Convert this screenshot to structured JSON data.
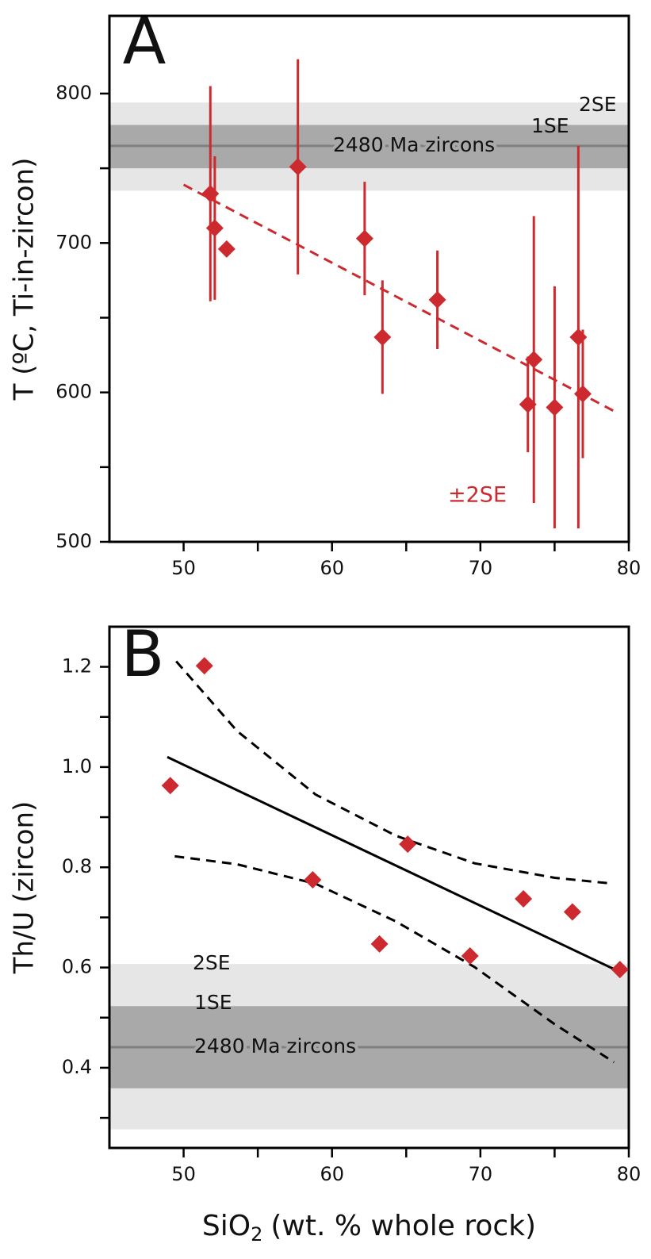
{
  "chart_data": [
    {
      "type": "scatter",
      "title": "A",
      "y_label": "T (ºC, Ti-in-zircon)",
      "xlim": [
        45,
        80
      ],
      "ylim": [
        500,
        852
      ],
      "xticks": [
        50,
        60,
        70,
        80
      ],
      "xminorticks": [
        55,
        65,
        75
      ],
      "yticks": [
        500,
        600,
        700,
        800
      ],
      "yminorticks": [
        550,
        650,
        750
      ],
      "reference": {
        "label": "2480 Ma zircons",
        "value": 765,
        "band_1se": [
          750,
          779
        ],
        "band_2se": [
          735,
          794
        ],
        "label_1se": "1SE",
        "label_2se": "2SE",
        "color": "#808080",
        "color_1se": "#a9a9a9",
        "color_2se": "#e6e6e6"
      },
      "points": {
        "color": "#cc2a2f",
        "x": [
          51.8,
          52.1,
          52.9,
          57.7,
          62.2,
          63.4,
          67.1,
          73.2,
          73.6,
          75.0,
          76.6,
          76.9
        ],
        "values": [
          733,
          710,
          696,
          751,
          703,
          637,
          662,
          592,
          622,
          590,
          637,
          599
        ],
        "errors": [
          72,
          48,
          null,
          72,
          38,
          38,
          33,
          32,
          96,
          81,
          128,
          43
        ]
      },
      "error_label": "±2SE",
      "fits": [
        {
          "style": "dashed",
          "color": "#cc2a2f",
          "x": [
            50,
            79.1
          ],
          "values": [
            739,
            587
          ]
        }
      ]
    },
    {
      "type": "scatter",
      "title": "B",
      "y_label": "Th/U (zircon)",
      "x_label": {
        "text": "SiO",
        "sub": "2",
        "rest": "(wt. % whole rock)"
      },
      "xlim": [
        45,
        80
      ],
      "ylim": [
        0.24,
        1.28
      ],
      "xticks": [
        50,
        60,
        70,
        80
      ],
      "xminorticks": [
        55,
        65,
        75
      ],
      "yticks": [
        0.4,
        0.6,
        0.8,
        {
          "value": 1,
          "label": "1.0"
        },
        1.2
      ],
      "yminorticks": [
        0.3,
        0.5,
        0.7,
        0.9,
        1.1
      ],
      "reference": {
        "label": "2480 Ma zircons",
        "value": 0.441,
        "band_1se": [
          0.359,
          0.523
        ],
        "band_2se": [
          0.277,
          0.607
        ],
        "label_1se": "1SE",
        "label_2se": "2SE",
        "color": "#808080",
        "color_1se": "#a9a9a9",
        "color_2se": "#e6e6e6"
      },
      "points": {
        "color": "#cc2a2f",
        "x": [
          51.4,
          49.1,
          58.7,
          63.2,
          65.1,
          69.3,
          72.9,
          76.2,
          79.4
        ],
        "values": [
          1.202,
          0.963,
          0.775,
          0.647,
          0.846,
          0.623,
          0.737,
          0.711,
          0.596
        ]
      },
      "fits": [
        {
          "style": "solid",
          "color": "#000000",
          "x": [
            48.9,
            79.2
          ],
          "values": [
            1.02,
            0.594
          ]
        },
        {
          "style": "dashed",
          "color": "#000000",
          "x": [
            49.5,
            53.6,
            58.9,
            64.3,
            69.6,
            75.0,
            78.7
          ],
          "values": [
            1.211,
            1.072,
            0.945,
            0.863,
            0.808,
            0.779,
            0.768
          ]
        },
        {
          "style": "dashed",
          "color": "#000000",
          "x": [
            49.4,
            53.6,
            58.9,
            64.3,
            69.6,
            75.0,
            79.0
          ],
          "values": [
            0.822,
            0.806,
            0.767,
            0.692,
            0.601,
            0.487,
            0.411
          ]
        }
      ]
    }
  ]
}
